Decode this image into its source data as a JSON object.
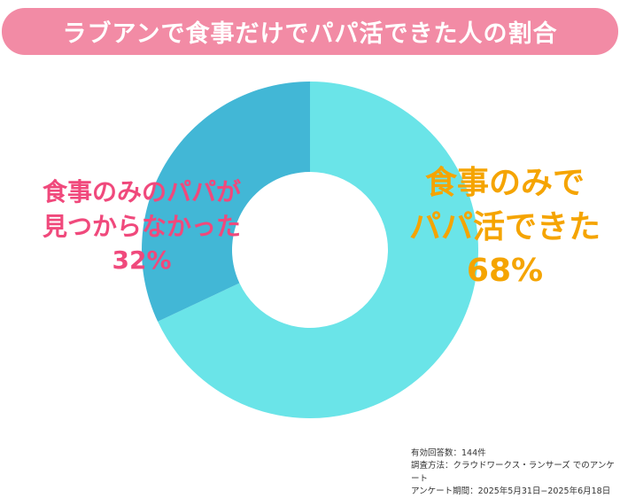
{
  "chart_data": {
    "type": "pie",
    "title": "ラブアンで食事だけでパパ活できた人の割合",
    "slices": [
      {
        "label": "食事のみでパパ活できた",
        "value": 68,
        "value_label": "68%",
        "color": "#6ae4e8",
        "label_color": "#f5a400"
      },
      {
        "label": "食事のみのパパが見つからなかった",
        "value": 32,
        "value_label": "32%",
        "color": "#42b7d6",
        "label_color": "#f0497c"
      }
    ]
  },
  "labels": {
    "s0_l1": "食事のみで",
    "s0_l2": "パパ活できた",
    "s1_l1": "食事のみのパパが",
    "s1_l2": "見つからなかった"
  },
  "footer": [
    "有効回答数：144件",
    "調査方法：クラウドワークス・ランサーズ でのアンケート",
    "アンケート期間：2025年5月31日−2025年6月18日"
  ]
}
